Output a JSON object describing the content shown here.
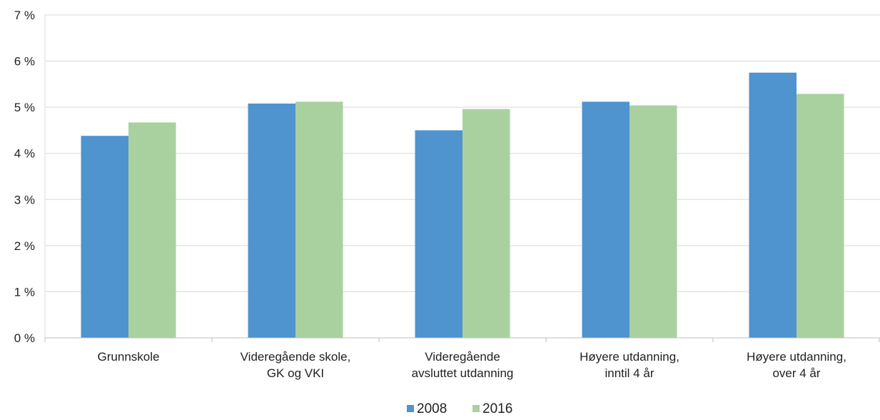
{
  "chart_data": {
    "type": "bar",
    "categories": [
      [
        "Grunnskole"
      ],
      [
        "Videregående skole,",
        "GK og VKI"
      ],
      [
        "Videregående",
        "avsluttet utdanning"
      ],
      [
        "Høyere utdanning,",
        "inntil 4 år"
      ],
      [
        "Høyere utdanning,",
        "over 4 år"
      ]
    ],
    "series": [
      {
        "name": "2008",
        "color": "#4f93cf",
        "values": [
          4.38,
          5.08,
          4.5,
          5.12,
          5.75
        ]
      },
      {
        "name": "2016",
        "color": "#a9d19f",
        "values": [
          4.67,
          5.12,
          4.96,
          5.04,
          5.29
        ]
      }
    ],
    "ylim": [
      0,
      7
    ],
    "yticks": [
      "0 %",
      "1 %",
      "2 %",
      "3 %",
      "4 %",
      "5 %",
      "6 %",
      "7 %"
    ],
    "grid": true,
    "legend_position": "bottom"
  }
}
